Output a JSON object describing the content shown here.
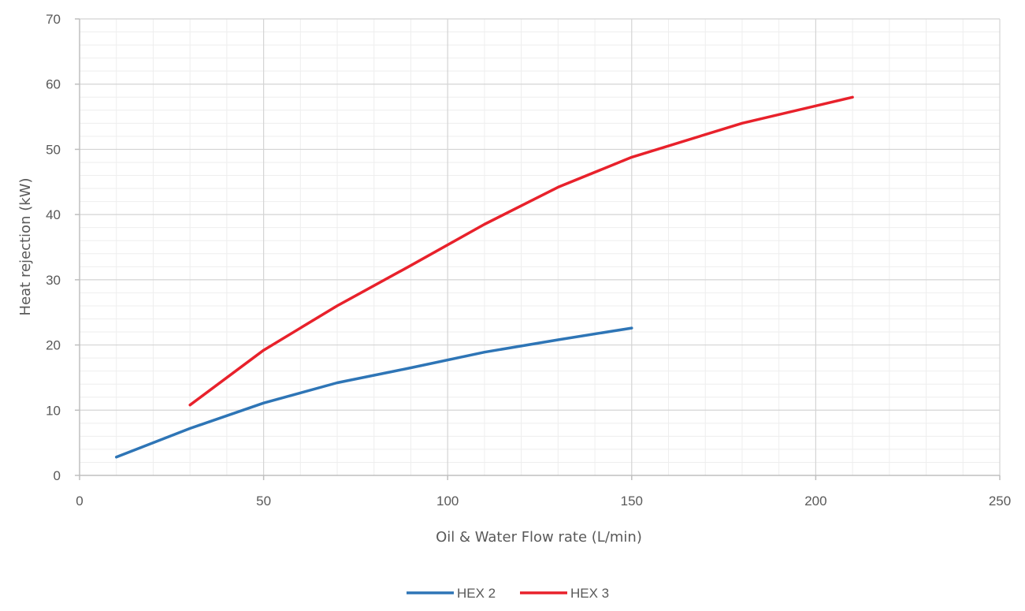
{
  "chart_data": {
    "type": "line",
    "title": "",
    "xlabel": "Oil & Water Flow rate (L/min)",
    "ylabel": "Heat rejection (kW)",
    "xlim": [
      0,
      250
    ],
    "ylim": [
      0,
      70
    ],
    "x_ticks": [
      0,
      50,
      100,
      150,
      200,
      250
    ],
    "y_ticks": [
      0,
      10,
      20,
      30,
      40,
      50,
      60,
      70
    ],
    "x_minor_step": 10,
    "y_minor_step": 2,
    "grid": true,
    "legend_position": "bottom-center",
    "series": [
      {
        "name": "HEX 2",
        "color": "#2E75B6",
        "x": [
          10,
          30,
          50,
          70,
          90,
          110,
          130,
          150
        ],
        "y": [
          2.8,
          7.2,
          11.1,
          14.2,
          16.5,
          18.9,
          20.8,
          22.6
        ]
      },
      {
        "name": "HEX 3",
        "color": "#E8212B",
        "x": [
          30,
          50,
          70,
          90,
          110,
          130,
          150,
          180,
          210
        ],
        "y": [
          10.8,
          19.2,
          26.0,
          32.2,
          38.5,
          44.2,
          48.8,
          54.0,
          58.0
        ]
      }
    ]
  }
}
